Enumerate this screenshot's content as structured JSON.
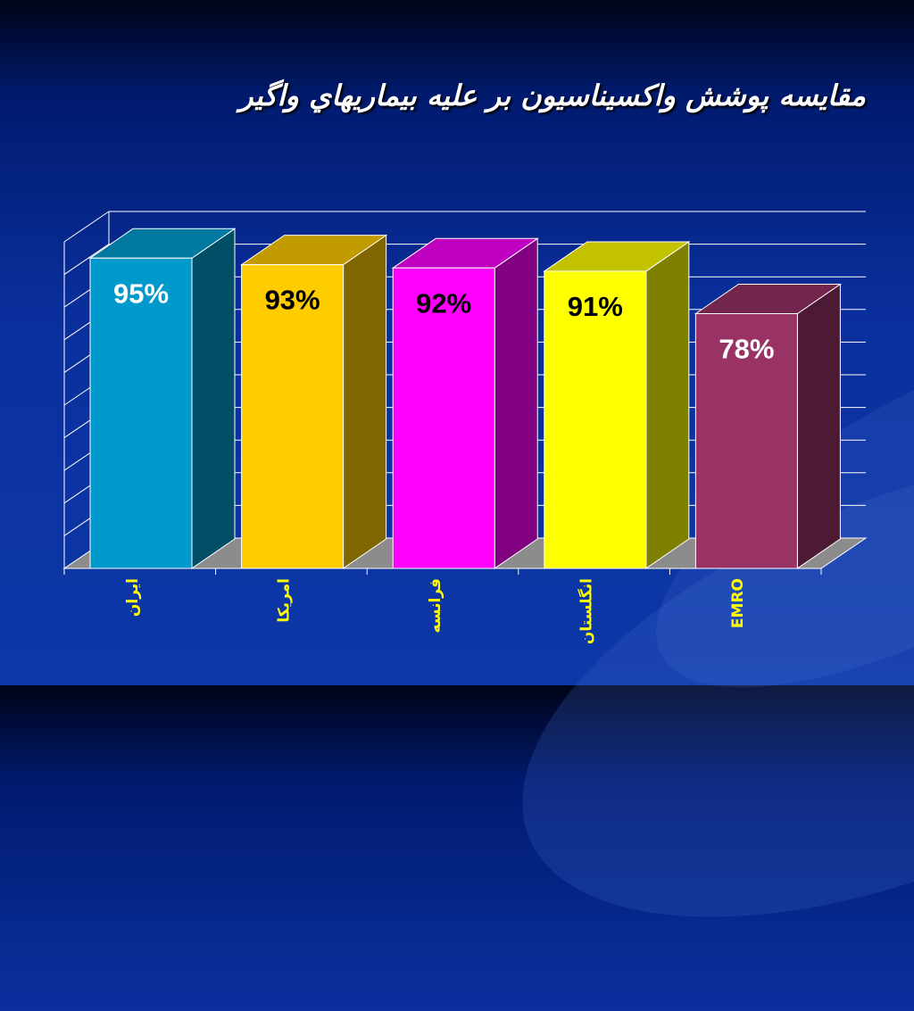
{
  "title": "مقايسه پوشش واكسيناسيون بر عليه بيماريهاي واگير",
  "chart_data": {
    "type": "bar",
    "three_d": true,
    "categories": [
      "ايران",
      "امريكا",
      "فرانسه",
      "انگلستان",
      "EMRO"
    ],
    "values": [
      95,
      93,
      92,
      91,
      78
    ],
    "value_labels": [
      "95%",
      "93%",
      "92%",
      "91%",
      "78%"
    ],
    "ylim": [
      0,
      100
    ],
    "grid": true,
    "bar_colors": [
      {
        "front": "#0099cc",
        "side": "#004f66",
        "top": "#00789f",
        "label": "#ffffff"
      },
      {
        "front": "#ffcc00",
        "side": "#806600",
        "top": "#c29b00",
        "label": "#000000"
      },
      {
        "front": "#ff00ff",
        "side": "#800080",
        "top": "#c000c0",
        "label": "#000000"
      },
      {
        "front": "#ffff00",
        "side": "#808000",
        "top": "#c2c200",
        "label": "#000000"
      },
      {
        "front": "#993366",
        "side": "#4d1a33",
        "top": "#73264d",
        "label": "#ffffff"
      }
    ],
    "category_label_color": "#ffff00"
  }
}
